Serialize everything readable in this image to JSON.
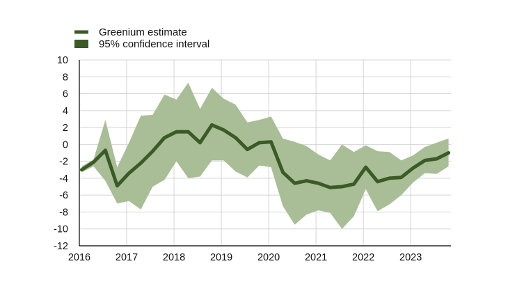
{
  "chart_data": {
    "type": "line",
    "title": "",
    "xlabel": "",
    "ylabel": "",
    "xlim": [
      2016.0,
      2023.85
    ],
    "ylim": [
      -12,
      10
    ],
    "y_ticks": [
      10,
      8,
      6,
      4,
      2,
      0,
      -2,
      -4,
      -6,
      -8,
      -10,
      -12
    ],
    "x_ticks": [
      {
        "label": "2016",
        "x": 2016
      },
      {
        "label": "2017",
        "x": 2017
      },
      {
        "label": "2018",
        "x": 2018
      },
      {
        "label": "2019",
        "x": 2019
      },
      {
        "label": "2020",
        "x": 2020
      },
      {
        "label": "2021",
        "x": 2021
      },
      {
        "label": "2022",
        "x": 2022
      },
      {
        "label": "2023",
        "x": 2023
      }
    ],
    "grid": true,
    "legend_position": "top-left",
    "legend": [
      {
        "label": "Greenium estimate",
        "kind": "line",
        "color": "#3a5a26"
      },
      {
        "label": "95% confidence interval",
        "kind": "area",
        "color": "#3a5a26"
      }
    ],
    "colors": {
      "line": "#3a5a26",
      "band": "#a9bd97",
      "grid": "#d4d4d4",
      "axis": "#000000"
    },
    "series": [
      {
        "name": "Greenium estimate",
        "type": "line",
        "x": [
          2016.05,
          2016.3,
          2016.55,
          2016.8,
          2017.05,
          2017.3,
          2017.55,
          2017.8,
          2018.05,
          2018.3,
          2018.55,
          2018.8,
          2019.05,
          2019.3,
          2019.55,
          2019.8,
          2020.05,
          2020.3,
          2020.55,
          2020.8,
          2021.05,
          2021.3,
          2021.55,
          2021.8,
          2022.05,
          2022.3,
          2022.55,
          2022.8,
          2023.05,
          2023.3,
          2023.55,
          2023.8
        ],
        "values": [
          -3.0,
          -2.1,
          -0.7,
          -4.9,
          -3.4,
          -2.2,
          -0.8,
          0.8,
          1.5,
          1.5,
          0.2,
          2.3,
          1.7,
          0.8,
          -0.6,
          0.2,
          0.3,
          -3.3,
          -4.6,
          -4.3,
          -4.6,
          -5.1,
          -5.0,
          -4.7,
          -2.7,
          -4.4,
          -4.0,
          -3.9,
          -2.8,
          -1.9,
          -1.7,
          -1.0
        ]
      },
      {
        "name": "95% confidence interval",
        "type": "area",
        "x": [
          2016.05,
          2016.3,
          2016.55,
          2016.8,
          2017.05,
          2017.3,
          2017.55,
          2017.8,
          2018.05,
          2018.3,
          2018.55,
          2018.8,
          2019.05,
          2019.3,
          2019.55,
          2019.8,
          2020.05,
          2020.3,
          2020.55,
          2020.8,
          2021.05,
          2021.3,
          2021.55,
          2021.8,
          2022.05,
          2022.3,
          2022.55,
          2022.8,
          2023.05,
          2023.3,
          2023.55,
          2023.8
        ],
        "upper": [
          -2.6,
          -1.8,
          2.9,
          -2.7,
          0.2,
          3.4,
          3.5,
          5.9,
          5.3,
          7.3,
          4.2,
          6.7,
          5.4,
          4.7,
          2.6,
          2.9,
          3.3,
          0.7,
          0.3,
          -0.2,
          -1.2,
          -1.9,
          0.0,
          -0.9,
          -0.1,
          -0.8,
          -0.9,
          -1.9,
          -1.3,
          -0.3,
          0.2,
          0.7
        ],
        "lower": [
          -3.3,
          -2.6,
          -4.3,
          -7.0,
          -6.7,
          -7.7,
          -5.0,
          -4.2,
          -2.0,
          -4.0,
          -3.8,
          -1.9,
          -1.9,
          -3.2,
          -3.9,
          -2.5,
          -2.7,
          -7.3,
          -9.5,
          -8.3,
          -7.8,
          -8.1,
          -10.0,
          -8.5,
          -5.3,
          -7.9,
          -7.1,
          -6.0,
          -4.5,
          -3.4,
          -3.5,
          -2.6
        ]
      }
    ]
  }
}
